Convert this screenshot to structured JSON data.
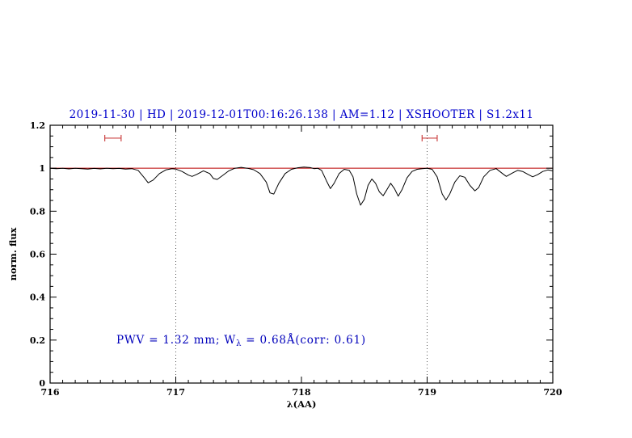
{
  "chart_data": {
    "type": "line",
    "title": "2019-11-30 | HD | 2019-12-01T00:16:26.138 | AM=1.12 | XSHOOTER | S1.2x11",
    "xlabel": "λ(AA)",
    "ylabel": "norm. flux",
    "xlim": [
      716,
      720
    ],
    "ylim": [
      0,
      1.2
    ],
    "xticks": [
      "716",
      "717",
      "718",
      "719",
      "720"
    ],
    "yticks": [
      "0",
      "0.2",
      "0.4",
      "0.6",
      "0.8",
      "1",
      "1.2"
    ],
    "grid": "off",
    "legend": "none",
    "dotted_vlines": [
      717,
      719
    ],
    "continuum": {
      "y": 1.0,
      "color": "#bb0000"
    },
    "window_markers": [
      {
        "center": 716.5,
        "half_width": 0.065,
        "y": 1.14
      },
      {
        "center": 719.02,
        "half_width": 0.06,
        "y": 1.14
      }
    ],
    "marker_color": "#cc4444",
    "annotation": {
      "prefix": "PWV = 1.32 mm; W",
      "sub": "λ",
      "suffix": " = 0.68Å(corr: 0.61)",
      "color": "#0000bb"
    },
    "title_color": "#0000cc",
    "colors": {
      "background": "#ffffff",
      "spectrum": "#000000"
    },
    "series": [
      {
        "name": "spectrum",
        "color": "#000000",
        "x": [
          716.0,
          716.05,
          716.1,
          716.15,
          716.2,
          716.25,
          716.3,
          716.35,
          716.4,
          716.45,
          716.5,
          716.55,
          716.6,
          716.65,
          716.7,
          716.75,
          716.78,
          716.82,
          716.87,
          716.92,
          716.97,
          717.0,
          717.05,
          717.1,
          717.13,
          717.17,
          717.22,
          717.27,
          717.3,
          717.33,
          717.37,
          717.42,
          717.47,
          717.52,
          717.57,
          717.62,
          717.67,
          717.72,
          717.75,
          717.78,
          717.82,
          717.87,
          717.92,
          717.97,
          718.02,
          718.07,
          718.1,
          718.13,
          718.16,
          718.2,
          718.23,
          718.26,
          718.3,
          718.34,
          718.38,
          718.41,
          718.44,
          718.47,
          718.5,
          718.53,
          718.56,
          718.59,
          718.62,
          718.65,
          718.68,
          718.71,
          718.74,
          718.77,
          718.8,
          718.84,
          718.88,
          718.92,
          718.96,
          719.0,
          719.04,
          719.08,
          719.12,
          719.15,
          719.18,
          719.22,
          719.26,
          719.3,
          719.34,
          719.38,
          719.41,
          719.45,
          719.5,
          719.55,
          719.6,
          719.63,
          719.67,
          719.72,
          719.76,
          719.8,
          719.84,
          719.88,
          719.92,
          719.96,
          720.0
        ],
        "y": [
          1.0,
          0.998,
          1.0,
          0.997,
          1.0,
          0.998,
          0.996,
          0.999,
          0.997,
          1.0,
          0.998,
          0.999,
          0.996,
          0.998,
          0.99,
          0.955,
          0.932,
          0.945,
          0.975,
          0.992,
          0.998,
          0.996,
          0.985,
          0.968,
          0.962,
          0.972,
          0.988,
          0.975,
          0.952,
          0.948,
          0.965,
          0.987,
          1.0,
          1.004,
          1.0,
          0.993,
          0.975,
          0.935,
          0.885,
          0.88,
          0.93,
          0.975,
          0.995,
          1.002,
          1.005,
          1.003,
          0.998,
          1.0,
          0.99,
          0.94,
          0.905,
          0.93,
          0.975,
          0.995,
          0.99,
          0.96,
          0.88,
          0.828,
          0.855,
          0.92,
          0.95,
          0.93,
          0.89,
          0.872,
          0.9,
          0.93,
          0.905,
          0.87,
          0.9,
          0.955,
          0.985,
          0.995,
          0.998,
          1.0,
          0.995,
          0.96,
          0.88,
          0.852,
          0.88,
          0.935,
          0.965,
          0.958,
          0.92,
          0.895,
          0.91,
          0.96,
          0.99,
          0.998,
          0.975,
          0.962,
          0.975,
          0.99,
          0.985,
          0.972,
          0.96,
          0.97,
          0.985,
          0.992,
          0.988
        ]
      }
    ]
  }
}
